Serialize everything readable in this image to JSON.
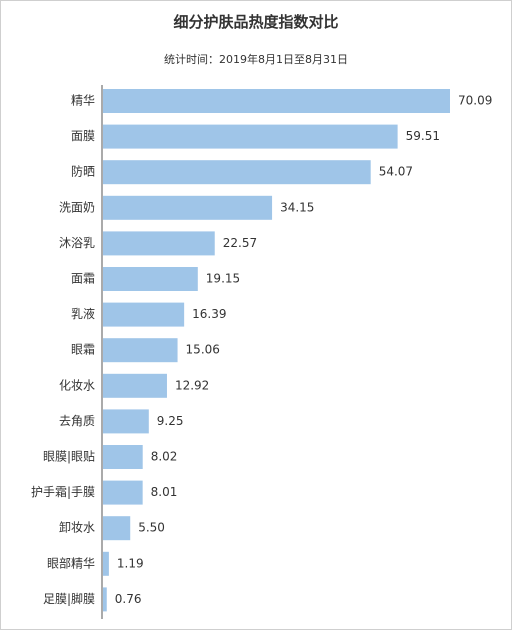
{
  "title": "细分护肤品热度指数对比",
  "subtitle": "统计时间：2019年8月1日至8月31日",
  "colors": {
    "bar": "#9fc5e8",
    "text": "#333333",
    "axis": "#555555"
  },
  "chart_data": {
    "type": "bar",
    "orientation": "horizontal",
    "title": "细分护肤品热度指数对比",
    "subtitle": "统计时间：2019年8月1日至8月31日",
    "categories": [
      "精华",
      "面膜",
      "防晒",
      "洗面奶",
      "沐浴乳",
      "面霜",
      "乳液",
      "眼霜",
      "化妆水",
      "去角质",
      "眼膜|眼贴",
      "护手霜|手膜",
      "卸妆水",
      "眼部精华",
      "足膜|脚膜"
    ],
    "values": [
      70.09,
      59.51,
      54.07,
      34.15,
      22.57,
      19.15,
      16.39,
      15.06,
      12.92,
      9.25,
      8.02,
      8.01,
      5.5,
      1.19,
      0.76
    ],
    "value_labels": [
      "70.09",
      "59.51",
      "54.07",
      "34.15",
      "22.57",
      "19.15",
      "16.39",
      "15.06",
      "12.92",
      "9.25",
      "8.02",
      "8.01",
      "5.50",
      "1.19",
      "0.76"
    ],
    "xlim": [
      0,
      70.09
    ],
    "grid": false,
    "legend": "none"
  }
}
